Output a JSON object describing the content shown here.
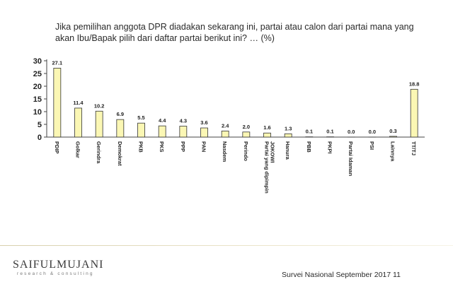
{
  "title": "Jika pemilihan anggota DPR diadakan sekarang ini,  partai atau calon dari partai mana yang akan Ibu/Bapak pilih dari daftar partai berikut ini? … (%)",
  "chart_data": {
    "type": "bar",
    "categories": [
      "PDIP",
      "Golkar",
      "Gerindra",
      "Demokrat",
      "PKB",
      "PKS",
      "PPP",
      "PAN",
      "Nasdem",
      "Perindo",
      "Partai yang dipimpin JOKOWI",
      "Hanura",
      "PBB",
      "PKPI",
      "Partai Idaman",
      "PSI",
      "Lainnya",
      "TT/TJ"
    ],
    "values": [
      27.1,
      11.4,
      10.2,
      6.9,
      5.5,
      4.4,
      4.3,
      3.6,
      2.4,
      2.0,
      1.6,
      1.3,
      0.1,
      0.1,
      0.0,
      0.0,
      0.3,
      18.8
    ],
    "value_labels": [
      "27.1",
      "11.4",
      "10.2",
      "6.9",
      "5.5",
      "4.4",
      "4.3",
      "3.6",
      "2.4",
      "2.0",
      "1.6",
      "1.3",
      "0.1",
      "0.1",
      "0.0",
      "0.0",
      "0.3",
      "18.8"
    ],
    "yticks": [
      "0",
      "5",
      "10",
      "15",
      "20",
      "25",
      "30"
    ],
    "ylim": [
      0,
      30
    ],
    "bar_color": "#fbf7b4",
    "bar_stroke": "#333333",
    "grid": false
  },
  "footer": {
    "logo": "SAIFULMUJANI",
    "logo_sub": "research & consulting",
    "note": "Survei Nasional September 2017  11"
  }
}
